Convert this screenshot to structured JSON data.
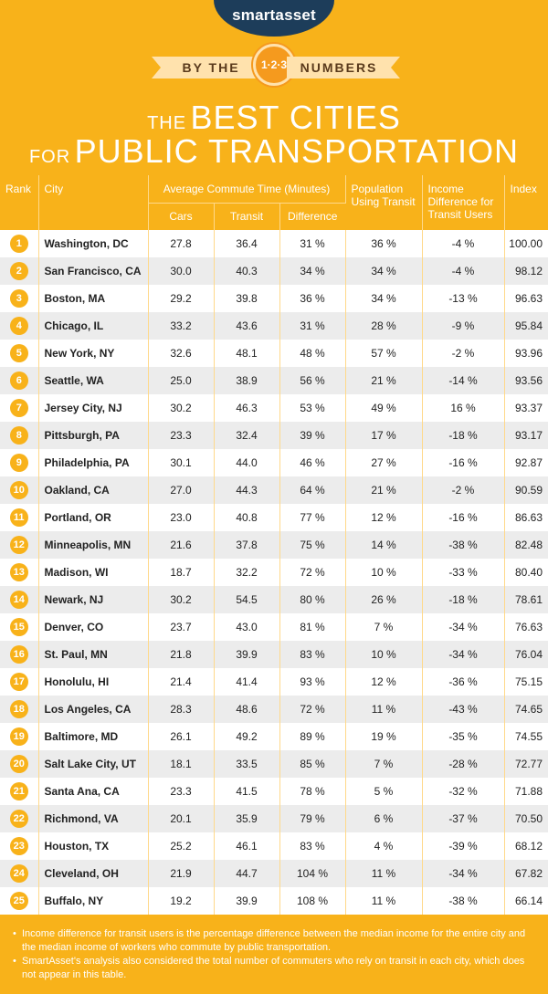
{
  "brand": "smartasset",
  "by_the_left": "BY THE",
  "badge": "1·2·3",
  "by_the_right": "NUMBERS",
  "title": {
    "the": "THE",
    "best_cities": "BEST CITIES",
    "for": "FOR",
    "public_transportation": "PUBLIC TRANSPORTATION"
  },
  "headers": {
    "rank": "Rank",
    "city": "City",
    "avg_commute": "Average Commute Time (Minutes)",
    "cars": "Cars",
    "transit": "Transit",
    "difference": "Difference",
    "population": "Population Using Transit",
    "income": "Income Difference for Transit Users",
    "index": "Index"
  },
  "rows": [
    {
      "rank": "1",
      "city": "Washington, DC",
      "cars": "27.8",
      "transit": "36.4",
      "diff": "31 %",
      "pop": "36 %",
      "income": "-4 %",
      "index": "100.00"
    },
    {
      "rank": "2",
      "city": "San Francisco, CA",
      "cars": "30.0",
      "transit": "40.3",
      "diff": "34 %",
      "pop": "34 %",
      "income": "-4 %",
      "index": "98.12"
    },
    {
      "rank": "3",
      "city": "Boston, MA",
      "cars": "29.2",
      "transit": "39.8",
      "diff": "36 %",
      "pop": "34 %",
      "income": "-13 %",
      "index": "96.63"
    },
    {
      "rank": "4",
      "city": "Chicago, IL",
      "cars": "33.2",
      "transit": "43.6",
      "diff": "31 %",
      "pop": "28 %",
      "income": "-9 %",
      "index": "95.84"
    },
    {
      "rank": "5",
      "city": "New York, NY",
      "cars": "32.6",
      "transit": "48.1",
      "diff": "48 %",
      "pop": "57 %",
      "income": "-2 %",
      "index": "93.96"
    },
    {
      "rank": "6",
      "city": "Seattle, WA",
      "cars": "25.0",
      "transit": "38.9",
      "diff": "56 %",
      "pop": "21 %",
      "income": "-14 %",
      "index": "93.56"
    },
    {
      "rank": "7",
      "city": "Jersey City, NJ",
      "cars": "30.2",
      "transit": "46.3",
      "diff": "53 %",
      "pop": "49 %",
      "income": "16 %",
      "index": "93.37"
    },
    {
      "rank": "8",
      "city": "Pittsburgh, PA",
      "cars": "23.3",
      "transit": "32.4",
      "diff": "39 %",
      "pop": "17 %",
      "income": "-18 %",
      "index": "93.17"
    },
    {
      "rank": "9",
      "city": "Philadelphia, PA",
      "cars": "30.1",
      "transit": "44.0",
      "diff": "46 %",
      "pop": "27 %",
      "income": "-16 %",
      "index": "92.87"
    },
    {
      "rank": "10",
      "city": "Oakland, CA",
      "cars": "27.0",
      "transit": "44.3",
      "diff": "64 %",
      "pop": "21 %",
      "income": "-2 %",
      "index": "90.59"
    },
    {
      "rank": "11",
      "city": "Portland, OR",
      "cars": "23.0",
      "transit": "40.8",
      "diff": "77 %",
      "pop": "12 %",
      "income": "-16 %",
      "index": "86.63"
    },
    {
      "rank": "12",
      "city": "Minneapolis, MN",
      "cars": "21.6",
      "transit": "37.8",
      "diff": "75 %",
      "pop": "14 %",
      "income": "-38 %",
      "index": "82.48"
    },
    {
      "rank": "13",
      "city": "Madison, WI",
      "cars": "18.7",
      "transit": "32.2",
      "diff": "72 %",
      "pop": "10 %",
      "income": "-33 %",
      "index": "80.40"
    },
    {
      "rank": "14",
      "city": "Newark, NJ",
      "cars": "30.2",
      "transit": "54.5",
      "diff": "80 %",
      "pop": "26 %",
      "income": "-18 %",
      "index": "78.61"
    },
    {
      "rank": "15",
      "city": "Denver, CO",
      "cars": "23.7",
      "transit": "43.0",
      "diff": "81 %",
      "pop": "7 %",
      "income": "-34 %",
      "index": "76.63"
    },
    {
      "rank": "16",
      "city": "St. Paul, MN",
      "cars": "21.8",
      "transit": "39.9",
      "diff": "83 %",
      "pop": "10 %",
      "income": "-34 %",
      "index": "76.04"
    },
    {
      "rank": "17",
      "city": "Honolulu, HI",
      "cars": "21.4",
      "transit": "41.4",
      "diff": "93 %",
      "pop": "12 %",
      "income": "-36 %",
      "index": "75.15"
    },
    {
      "rank": "18",
      "city": "Los Angeles, CA",
      "cars": "28.3",
      "transit": "48.6",
      "diff": "72 %",
      "pop": "11 %",
      "income": "-43 %",
      "index": "74.65"
    },
    {
      "rank": "19",
      "city": "Baltimore, MD",
      "cars": "26.1",
      "transit": "49.2",
      "diff": "89 %",
      "pop": "19 %",
      "income": "-35 %",
      "index": "74.55"
    },
    {
      "rank": "20",
      "city": "Salt Lake City, UT",
      "cars": "18.1",
      "transit": "33.5",
      "diff": "85 %",
      "pop": "7 %",
      "income": "-28 %",
      "index": "72.77"
    },
    {
      "rank": "21",
      "city": "Santa Ana, CA",
      "cars": "23.3",
      "transit": "41.5",
      "diff": "78 %",
      "pop": "5 %",
      "income": "-32 %",
      "index": "71.88"
    },
    {
      "rank": "22",
      "city": "Richmond, VA",
      "cars": "20.1",
      "transit": "35.9",
      "diff": "79 %",
      "pop": "6 %",
      "income": "-37 %",
      "index": "70.50"
    },
    {
      "rank": "23",
      "city": "Houston, TX",
      "cars": "25.2",
      "transit": "46.1",
      "diff": "83 %",
      "pop": "4 %",
      "income": "-39 %",
      "index": "68.12"
    },
    {
      "rank": "24",
      "city": "Cleveland, OH",
      "cars": "21.9",
      "transit": "44.7",
      "diff": "104 %",
      "pop": "11 %",
      "income": "-34 %",
      "index": "67.82"
    },
    {
      "rank": "25",
      "city": "Buffalo, NY",
      "cars": "19.2",
      "transit": "39.9",
      "diff": "108 %",
      "pop": "11 %",
      "income": "-38 %",
      "index": "66.14"
    }
  ],
  "notes": [
    "Income difference for transit users is the percentage difference between the median income for the entire city and the median income of workers who commute by public transportation.",
    "SmartAsset's analysis also considered the total number of commuters who rely on transit in each city, which does not appear in this table."
  ],
  "colors": {
    "background": "#f8b21a",
    "brand_tab": "#1d3d5a",
    "ribbon": "#ffe2ad",
    "row_alt": "#ececec"
  }
}
